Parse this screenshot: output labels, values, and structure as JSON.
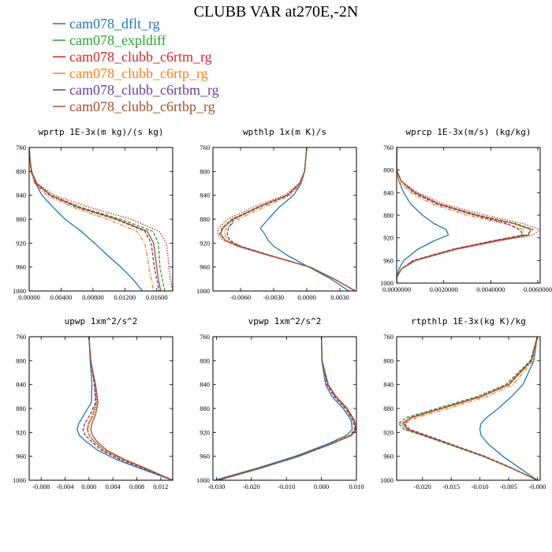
{
  "figure": {
    "title": "CLUBB VAR at270E,-2N"
  },
  "colors": {
    "cam078_dflt_rg": "#1f77b4",
    "cam078_expldiff": "#2ca02c",
    "cam078_clubb_c6rtm_rg": "#d62728",
    "cam078_clubb_c6rtp_rg": "#ff7f0e",
    "cam078_clubb_c6rtbm_rg": "#6a3d9a",
    "cam078_clubb_c6rtbp_rg": "#a0522d"
  },
  "legend": [
    "cam078_dflt_rg",
    "cam078_expldiff",
    "cam078_clubb_c6rtm_rg",
    "cam078_clubb_c6rtp_rg",
    "cam078_clubb_c6rtbm_rg",
    "cam078_clubb_c6rtbp_rg"
  ],
  "chart_data": [
    {
      "type": "line",
      "title": "wprtp  1E-3x(m kg)/(s kg)",
      "xlim": [
        0,
        0.018
      ],
      "xticks": [
        0.0,
        0.004,
        0.008,
        0.012,
        0.016
      ],
      "xtick_labels": [
        "0.00000",
        "0.00400",
        "0.00800",
        "0.01200",
        "0.01600"
      ],
      "ylim": [
        760,
        1000
      ],
      "yticks": [
        760,
        800,
        840,
        880,
        920,
        960,
        1000
      ],
      "ytick_labels": [
        "760",
        "800",
        "840",
        "880",
        "920",
        "960",
        "1000"
      ],
      "y": [
        760,
        780,
        800,
        820,
        840,
        860,
        880,
        900,
        920,
        940,
        960,
        980,
        1000
      ],
      "series": [
        {
          "name": "cam078_dflt_rg",
          "dash": "solid",
          "values": [
            0.0,
            0.0001,
            0.0003,
            0.0008,
            0.0016,
            0.003,
            0.0045,
            0.0065,
            0.0082,
            0.0098,
            0.0115,
            0.013,
            0.0142
          ]
        },
        {
          "name": "cam078_expldiff",
          "dash": "dashed",
          "values": [
            0.0,
            0.0001,
            0.0003,
            0.0009,
            0.0028,
            0.0065,
            0.0115,
            0.0155,
            0.0162,
            0.0163,
            0.0164,
            0.0167,
            0.017
          ]
        },
        {
          "name": "cam078_clubb_c6rtm_rg",
          "dash": "dotted",
          "values": [
            0.0,
            0.0001,
            0.0003,
            0.001,
            0.0032,
            0.0075,
            0.0128,
            0.0163,
            0.0172,
            0.0174,
            0.0175,
            0.0177,
            0.018
          ]
        },
        {
          "name": "cam078_clubb_c6rtp_rg",
          "dash": "dashdot",
          "values": [
            0.0,
            0.0001,
            0.0002,
            0.0007,
            0.0022,
            0.0055,
            0.0098,
            0.0135,
            0.0145,
            0.0148,
            0.015,
            0.0153,
            0.0156
          ]
        },
        {
          "name": "cam078_clubb_c6rtbm_rg",
          "dash": "dashed",
          "values": [
            0.0,
            0.0001,
            0.0003,
            0.0008,
            0.0026,
            0.006,
            0.0108,
            0.0145,
            0.0153,
            0.0155,
            0.0157,
            0.016,
            0.0163
          ]
        },
        {
          "name": "cam078_clubb_c6rtbp_rg",
          "dash": "solid",
          "values": [
            0.0,
            0.0001,
            0.0003,
            0.0009,
            0.0027,
            0.0062,
            0.011,
            0.0148,
            0.0156,
            0.0158,
            0.016,
            0.0162,
            0.0165
          ]
        }
      ]
    },
    {
      "type": "line",
      "title": "wpthlp  1x(m K)/s",
      "xlim": [
        -0.0085,
        0.0045
      ],
      "xticks": [
        -0.006,
        -0.003,
        0.0,
        0.003
      ],
      "xtick_labels": [
        "-0.0060",
        "-0.0030",
        "0.0000",
        "0.0030"
      ],
      "ylim": [
        760,
        1000
      ],
      "yticks": [
        760,
        800,
        840,
        880,
        920,
        960,
        1000
      ],
      "ytick_labels": [
        "760",
        "800",
        "840",
        "880",
        "920",
        "960",
        "1000"
      ],
      "y": [
        760,
        800,
        820,
        840,
        860,
        880,
        895,
        905,
        915,
        925,
        940,
        960,
        980,
        1000
      ],
      "series": [
        {
          "name": "cam078_dflt_rg",
          "dash": "solid",
          "values": [
            0.0,
            -0.0002,
            -0.0005,
            -0.0012,
            -0.0025,
            -0.0035,
            -0.0042,
            -0.0038,
            -0.0035,
            -0.003,
            -0.0018,
            0.0002,
            0.0022,
            0.0038
          ]
        },
        {
          "name": "cam078_expldiff",
          "dash": "dashed",
          "values": [
            0.0,
            -0.0002,
            -0.0006,
            -0.0018,
            -0.0045,
            -0.0068,
            -0.0077,
            -0.0079,
            -0.0074,
            -0.0062,
            -0.0035,
            0.0003,
            0.0025,
            0.0044
          ]
        },
        {
          "name": "cam078_clubb_c6rtm_rg",
          "dash": "dotted",
          "values": [
            0.0,
            -0.0002,
            -0.0007,
            -0.002,
            -0.0049,
            -0.0072,
            -0.008,
            -0.0081,
            -0.0076,
            -0.0063,
            -0.0036,
            0.0003,
            0.0025,
            0.0044
          ]
        },
        {
          "name": "cam078_clubb_c6rtp_rg",
          "dash": "dashdot",
          "values": [
            0.0,
            -0.0002,
            -0.0005,
            -0.0015,
            -0.0039,
            -0.0062,
            -0.0073,
            -0.0075,
            -0.0071,
            -0.006,
            -0.0034,
            0.0003,
            0.0025,
            0.0044
          ]
        },
        {
          "name": "cam078_clubb_c6rtbm_rg",
          "dash": "dashed",
          "values": [
            0.0,
            -0.0002,
            -0.0006,
            -0.0017,
            -0.0043,
            -0.0066,
            -0.0071,
            -0.0072,
            -0.007,
            -0.006,
            -0.0034,
            0.0003,
            0.0025,
            0.0044
          ]
        },
        {
          "name": "cam078_clubb_c6rtbp_rg",
          "dash": "solid",
          "values": [
            0.0,
            -0.0002,
            -0.0006,
            -0.0018,
            -0.0044,
            -0.0067,
            -0.0076,
            -0.0078,
            -0.0074,
            -0.0062,
            -0.0035,
            0.0003,
            0.0025,
            0.0044
          ]
        }
      ]
    },
    {
      "type": "line",
      "title": "wprcp  1E-3x(m/s) (kg/kg)",
      "xlim": [
        0,
        0.0061
      ],
      "xticks": [
        0.0,
        0.002,
        0.004,
        0.006
      ],
      "xtick_labels": [
        "0.0000000",
        "0.0020000",
        "0.0040000",
        "0.0060000"
      ],
      "ylim": [
        760,
        1000
      ],
      "yticks": [
        760,
        800,
        840,
        880,
        920,
        960,
        1000
      ],
      "ytick_labels": [
        "760",
        "800",
        "840",
        "880",
        "920",
        "960",
        "1000"
      ],
      "y": [
        760,
        800,
        820,
        840,
        860,
        880,
        895,
        905,
        915,
        925,
        940,
        960,
        975,
        990,
        1000
      ],
      "series": [
        {
          "name": "cam078_dflt_rg",
          "dash": "solid",
          "values": [
            0.0,
            0.0,
            0.0001,
            0.0003,
            0.0006,
            0.0011,
            0.0016,
            0.0021,
            0.0022,
            0.0016,
            0.0009,
            0.0003,
            0.0001,
            0.0,
            0.0
          ]
        },
        {
          "name": "cam078_expldiff",
          "dash": "dashed",
          "values": [
            0.0,
            0.0,
            0.0002,
            0.0008,
            0.0018,
            0.0035,
            0.0051,
            0.0058,
            0.0055,
            0.0042,
            0.0025,
            0.0008,
            0.0002,
            0.0,
            0.0
          ]
        },
        {
          "name": "cam078_clubb_c6rtm_rg",
          "dash": "dotted",
          "values": [
            0.0,
            0.0,
            0.0002,
            0.0009,
            0.002,
            0.0038,
            0.0054,
            0.0061,
            0.0058,
            0.0044,
            0.0026,
            0.0008,
            0.0002,
            0.0,
            0.0
          ]
        },
        {
          "name": "cam078_clubb_c6rtp_rg",
          "dash": "dashdot",
          "values": [
            0.0,
            0.0,
            0.0001,
            0.0006,
            0.0015,
            0.003,
            0.0046,
            0.0054,
            0.0053,
            0.0041,
            0.0024,
            0.0007,
            0.0002,
            0.0,
            0.0
          ]
        },
        {
          "name": "cam078_clubb_c6rtbm_rg",
          "dash": "dashed",
          "values": [
            0.0,
            0.0,
            0.0002,
            0.0007,
            0.0017,
            0.0033,
            0.0047,
            0.0052,
            0.0054,
            0.0041,
            0.0024,
            0.0007,
            0.0002,
            0.0,
            0.0
          ]
        },
        {
          "name": "cam078_clubb_c6rtbp_rg",
          "dash": "solid",
          "values": [
            0.0,
            0.0,
            0.0002,
            0.0008,
            0.0018,
            0.0034,
            0.005,
            0.0057,
            0.0056,
            0.0043,
            0.0025,
            0.0008,
            0.0002,
            0.0,
            0.0
          ]
        }
      ]
    },
    {
      "type": "line",
      "title": "upwp  1xm^2/s^2",
      "xlim": [
        -0.01,
        0.014
      ],
      "xticks": [
        -0.008,
        -0.004,
        0.0,
        0.004,
        0.008,
        0.012
      ],
      "xtick_labels": [
        "-0.008",
        "-0.004",
        "0.000",
        "0.004",
        "0.008",
        "0.012"
      ],
      "ylim": [
        760,
        1000
      ],
      "yticks": [
        760,
        800,
        840,
        880,
        920,
        960,
        1000
      ],
      "ytick_labels": [
        "760",
        "800",
        "840",
        "880",
        "920",
        "960",
        "1000"
      ],
      "y": [
        760,
        800,
        840,
        870,
        890,
        905,
        915,
        925,
        935,
        950,
        965,
        980,
        1000
      ],
      "series": [
        {
          "name": "cam078_dflt_rg",
          "dash": "solid",
          "values": [
            0.0,
            0.0002,
            0.0005,
            0.0004,
            -0.0008,
            -0.0017,
            -0.002,
            -0.0016,
            -0.0005,
            0.0015,
            0.0045,
            0.0085,
            0.014
          ]
        },
        {
          "name": "cam078_expldiff",
          "dash": "dashed",
          "values": [
            0.0,
            0.0003,
            0.0009,
            0.0012,
            0.0006,
            -0.0001,
            -0.0003,
            0.0,
            0.0008,
            0.0025,
            0.0055,
            0.0092,
            0.014
          ]
        },
        {
          "name": "cam078_clubb_c6rtm_rg",
          "dash": "dotted",
          "values": [
            0.0,
            0.0003,
            0.001,
            0.0013,
            0.0008,
            0.0001,
            -0.0002,
            0.0001,
            0.0009,
            0.0026,
            0.0056,
            0.0093,
            0.014
          ]
        },
        {
          "name": "cam078_clubb_c6rtp_rg",
          "dash": "dashdot",
          "values": [
            0.0,
            0.0003,
            0.0009,
            0.0012,
            0.0006,
            -0.0001,
            -0.0003,
            0.0,
            0.0008,
            0.0025,
            0.0055,
            0.0092,
            0.014
          ]
        },
        {
          "name": "cam078_clubb_c6rtbm_rg",
          "dash": "dashed",
          "values": [
            0.0,
            0.0003,
            0.0009,
            0.0011,
            0.0002,
            -0.0007,
            -0.001,
            -0.0006,
            0.0004,
            0.0021,
            0.0051,
            0.009,
            0.014
          ]
        },
        {
          "name": "cam078_clubb_c6rtbp_rg",
          "dash": "solid",
          "values": [
            0.0,
            0.0003,
            0.0011,
            0.0015,
            0.0011,
            0.0005,
            0.0003,
            0.0006,
            0.0013,
            0.003,
            0.0059,
            0.0095,
            0.014
          ]
        }
      ]
    },
    {
      "type": "line",
      "title": "vpwp  1xm^2/s^2",
      "xlim": [
        -0.031,
        0.01
      ],
      "xticks": [
        -0.03,
        -0.02,
        -0.01,
        0.0,
        0.01
      ],
      "xtick_labels": [
        "-0.030",
        "-0.020",
        "-0.010",
        "0.000",
        "0.010"
      ],
      "ylim": [
        760,
        1000
      ],
      "yticks": [
        760,
        800,
        840,
        880,
        920,
        960,
        1000
      ],
      "ytick_labels": [
        "760",
        "800",
        "840",
        "880",
        "920",
        "960",
        "1000"
      ],
      "y": [
        760,
        800,
        840,
        860,
        880,
        900,
        915,
        925,
        940,
        960,
        980,
        1000
      ],
      "series": [
        {
          "name": "cam078_dflt_rg",
          "dash": "solid",
          "values": [
            0.0,
            0.0001,
            0.0012,
            0.003,
            0.0062,
            0.0085,
            0.0088,
            0.0072,
            0.0015,
            -0.0075,
            -0.0185,
            -0.0305
          ]
        },
        {
          "name": "cam078_expldiff",
          "dash": "dashed",
          "values": [
            0.0,
            0.0002,
            0.0018,
            0.004,
            0.0072,
            0.0093,
            0.0098,
            0.0085,
            0.0025,
            -0.0065,
            -0.0175,
            -0.0295
          ]
        },
        {
          "name": "cam078_clubb_c6rtm_rg",
          "dash": "dotted",
          "values": [
            0.0,
            0.0002,
            0.002,
            0.0043,
            0.0075,
            0.0095,
            0.01,
            0.0087,
            0.0026,
            -0.0064,
            -0.0174,
            -0.0294
          ]
        },
        {
          "name": "cam078_clubb_c6rtp_rg",
          "dash": "dashdot",
          "values": [
            0.0,
            0.0002,
            0.0017,
            0.0038,
            0.007,
            0.0091,
            0.0096,
            0.0083,
            0.0024,
            -0.0066,
            -0.0176,
            -0.0296
          ]
        },
        {
          "name": "cam078_clubb_c6rtbm_rg",
          "dash": "dashed",
          "values": [
            0.0,
            0.0002,
            0.0016,
            0.0036,
            0.0068,
            0.009,
            0.0095,
            0.0082,
            0.0023,
            -0.0067,
            -0.0177,
            -0.0297
          ]
        },
        {
          "name": "cam078_clubb_c6rtbp_rg",
          "dash": "solid",
          "values": [
            0.0,
            0.0002,
            0.0019,
            0.0041,
            0.0073,
            0.0094,
            0.0099,
            0.0086,
            0.0025,
            -0.0065,
            -0.0175,
            -0.0295
          ]
        }
      ]
    },
    {
      "type": "line",
      "title": "rtpthlp  1E-3x(kg K)/kg",
      "xlim": [
        -0.0245,
        0.0005
      ],
      "xticks": [
        -0.02,
        -0.015,
        -0.01,
        -0.005,
        0.0
      ],
      "xtick_labels": [
        "-0.020",
        "-0.015",
        "-0.010",
        "-0.005",
        "-0.000"
      ],
      "ylim": [
        760,
        1000
      ],
      "yticks": [
        760,
        800,
        840,
        880,
        920,
        960,
        1000
      ],
      "ytick_labels": [
        "760",
        "800",
        "840",
        "880",
        "920",
        "960",
        "1000"
      ],
      "y": [
        760,
        800,
        840,
        860,
        880,
        895,
        905,
        915,
        925,
        940,
        960,
        980,
        1000
      ],
      "series": [
        {
          "name": "cam078_dflt_rg",
          "dash": "solid",
          "values": [
            0.0,
            -0.0006,
            -0.0025,
            -0.0045,
            -0.0068,
            -0.0088,
            -0.0098,
            -0.01,
            -0.0098,
            -0.0085,
            -0.006,
            -0.003,
            0.0
          ]
        },
        {
          "name": "cam078_expldiff",
          "dash": "dashed",
          "values": [
            0.0,
            -0.0012,
            -0.0055,
            -0.0105,
            -0.0175,
            -0.0228,
            -0.0242,
            -0.0232,
            -0.02,
            -0.0155,
            -0.0095,
            -0.0045,
            0.0
          ]
        },
        {
          "name": "cam078_clubb_c6rtm_rg",
          "dash": "dotted",
          "values": [
            0.0,
            -0.0011,
            -0.0052,
            -0.01,
            -0.017,
            -0.0222,
            -0.0238,
            -0.0229,
            -0.0198,
            -0.0153,
            -0.0094,
            -0.0044,
            0.0
          ]
        },
        {
          "name": "cam078_clubb_c6rtp_rg",
          "dash": "dashdot",
          "values": [
            0.0,
            -0.0008,
            -0.0042,
            -0.0088,
            -0.0155,
            -0.021,
            -0.023,
            -0.0226,
            -0.0196,
            -0.0152,
            -0.0093,
            -0.0044,
            0.0
          ]
        },
        {
          "name": "cam078_clubb_c6rtbm_rg",
          "dash": "dashed",
          "values": [
            0.0,
            -0.0011,
            -0.005,
            -0.0098,
            -0.0168,
            -0.022,
            -0.0232,
            -0.0222,
            -0.0192,
            -0.0149,
            -0.0091,
            -0.0043,
            0.0
          ]
        },
        {
          "name": "cam078_clubb_c6rtbp_rg",
          "dash": "solid",
          "values": [
            0.0,
            -0.001,
            -0.0049,
            -0.0097,
            -0.0166,
            -0.0218,
            -0.0234,
            -0.0226,
            -0.0196,
            -0.0152,
            -0.0093,
            -0.0044,
            0.0
          ]
        }
      ]
    }
  ]
}
